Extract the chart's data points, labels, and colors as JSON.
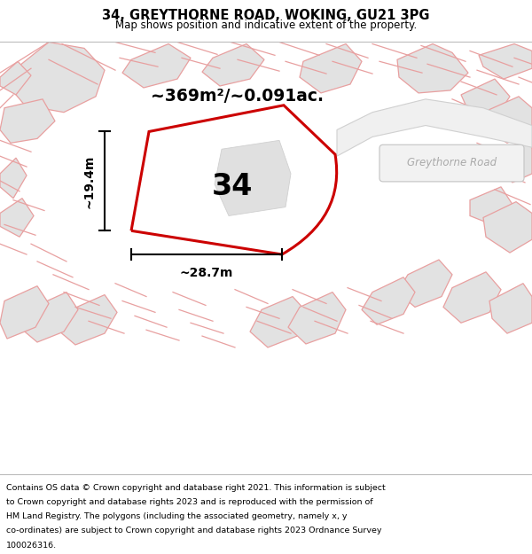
{
  "title": "34, GREYTHORNE ROAD, WOKING, GU21 3PG",
  "subtitle": "Map shows position and indicative extent of the property.",
  "footer_lines": [
    "Contains OS data © Crown copyright and database right 2021. This information is subject",
    "to Crown copyright and database rights 2023 and is reproduced with the permission of",
    "HM Land Registry. The polygons (including the associated geometry, namely x, y",
    "co-ordinates) are subject to Crown copyright and database rights 2023 Ordnance Survey",
    "100026316."
  ],
  "area_label": "~369m²/~0.091ac.",
  "number_label": "34",
  "width_label": "~28.7m",
  "height_label": "~19.4m",
  "road_label": "Greythorne Road",
  "polygon_color": "#cc0000",
  "building_fill": "#e2e2e2",
  "building_edge": "#e8e8e8",
  "bg_fill": "#f7f7f7",
  "pink_edge": "#e8a0a0",
  "map_bg": "#f5f5f5"
}
